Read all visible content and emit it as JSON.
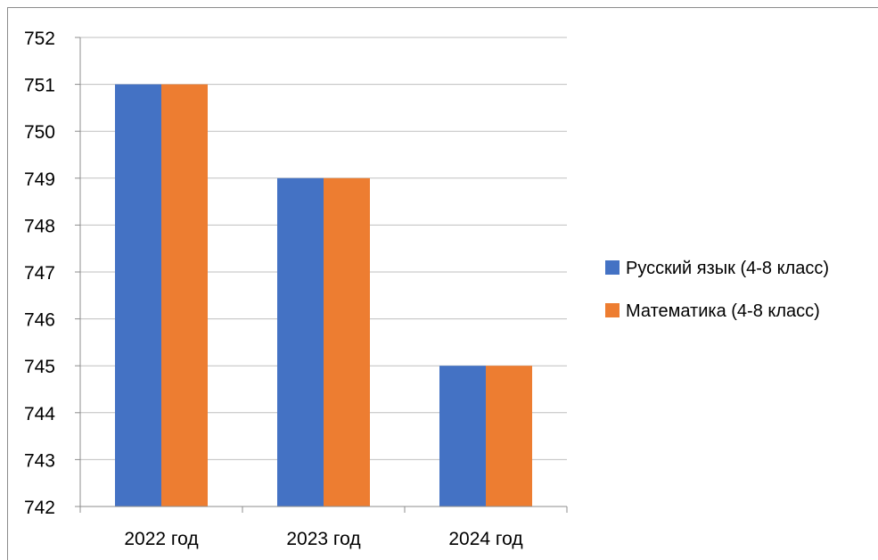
{
  "chart_data": {
    "type": "bar",
    "categories": [
      "2022 год",
      "2023 год",
      "2024 год"
    ],
    "series": [
      {
        "name": "Русский язык (4-8 класс)",
        "values": [
          751,
          749,
          745
        ],
        "color": "#4472C4"
      },
      {
        "name": "Математика (4-8 класс)",
        "values": [
          751,
          749,
          745
        ],
        "color": "#ED7D31"
      }
    ],
    "ylim": [
      742,
      752
    ],
    "yticks": [
      742,
      743,
      744,
      745,
      746,
      747,
      748,
      749,
      750,
      751,
      752
    ],
    "grid": true,
    "legend_position": "right"
  }
}
